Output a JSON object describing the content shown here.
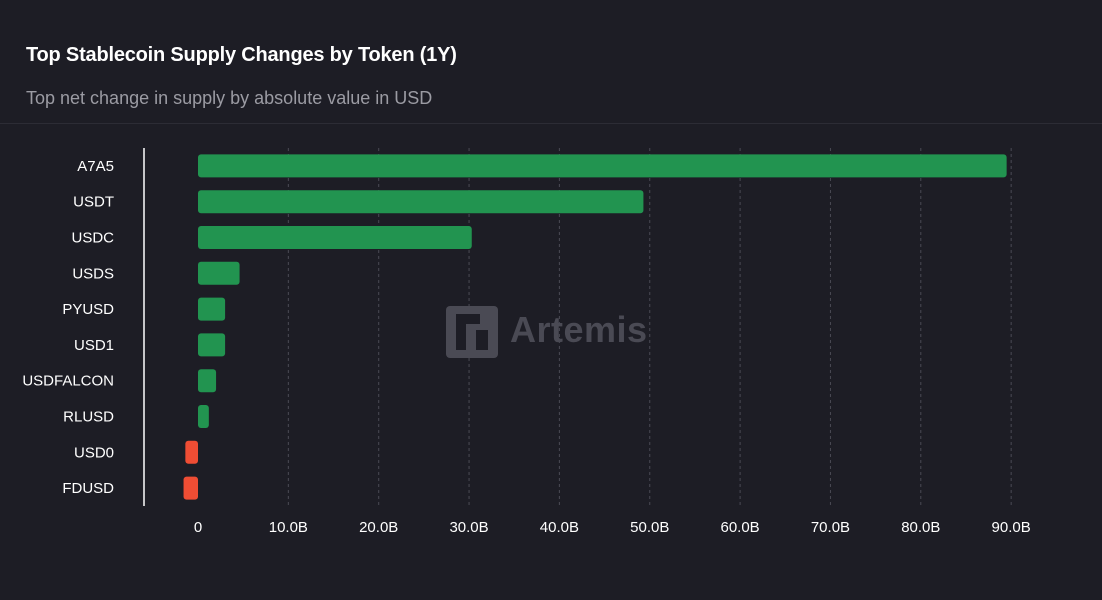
{
  "header": {
    "title": "Top Stablecoin Supply Changes by Token (1Y)",
    "subtitle": "Top net change in supply by absolute value in USD"
  },
  "watermark": {
    "text": "Artemis",
    "icon": "artemis-logo-icon"
  },
  "colors": {
    "background": "#1d1d25",
    "positive": "#229450",
    "negative": "#ef4d34",
    "grid": "#4a4a54",
    "tick_text": "#ffffff",
    "watermark": "#4a4a54"
  },
  "chart_data": {
    "type": "bar",
    "orientation": "horizontal",
    "categories": [
      "A7A5",
      "USDT",
      "USDC",
      "USDS",
      "PYUSD",
      "USD1",
      "USDFALCON",
      "RLUSD",
      "USD0",
      "FDUSD"
    ],
    "values": [
      89.5,
      49.3,
      30.3,
      4.6,
      3.0,
      3.0,
      2.0,
      1.2,
      -1.4,
      -1.6
    ],
    "unit": "B",
    "xlim": [
      -6,
      95
    ],
    "xticks": [
      0,
      10,
      20,
      30,
      40,
      50,
      60,
      70,
      80,
      90
    ],
    "xtick_labels": [
      "0",
      "10.0B",
      "20.0B",
      "30.0B",
      "40.0B",
      "50.0B",
      "60.0B",
      "70.0B",
      "80.0B",
      "90.0B"
    ],
    "grid": "vertical dashed",
    "legend": "none"
  }
}
